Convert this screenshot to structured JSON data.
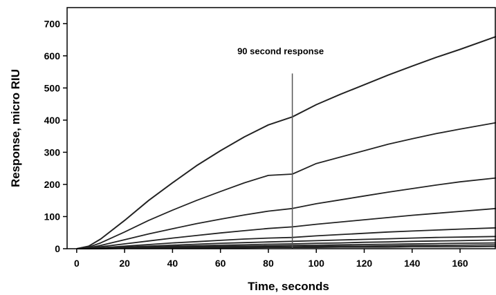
{
  "chart_data": {
    "type": "line",
    "title": "",
    "xlabel": "Time, seconds",
    "ylabel": "Response, micro RIU",
    "xlim": [
      -4,
      175
    ],
    "ylim": [
      0,
      750
    ],
    "x_ticks": [
      0,
      20,
      40,
      60,
      80,
      100,
      120,
      140,
      160
    ],
    "y_ticks": [
      0,
      100,
      200,
      300,
      400,
      500,
      600,
      700
    ],
    "grid": false,
    "legend": "none",
    "line_color": "#222222",
    "annotation": {
      "text": "90 second response",
      "x": 90,
      "line_y_range": [
        0,
        545
      ]
    },
    "x": [
      0,
      5,
      10,
      20,
      30,
      40,
      50,
      60,
      70,
      80,
      90,
      100,
      110,
      120,
      130,
      140,
      150,
      160,
      175
    ],
    "series": [
      {
        "values": [
          0,
          8,
          30,
          88,
          150,
          205,
          258,
          305,
          348,
          385,
          410,
          448,
          480,
          510,
          540,
          568,
          595,
          620,
          660
        ]
      },
      {
        "values": [
          0,
          5,
          18,
          52,
          88,
          120,
          150,
          178,
          205,
          228,
          232,
          265,
          285,
          305,
          325,
          342,
          358,
          372,
          392
        ]
      },
      {
        "values": [
          0,
          3,
          10,
          28,
          46,
          62,
          78,
          92,
          105,
          117,
          125,
          140,
          152,
          164,
          176,
          187,
          198,
          208,
          220
        ]
      },
      {
        "values": [
          0,
          2,
          6,
          15,
          24,
          33,
          41,
          49,
          56,
          63,
          68,
          76,
          83,
          90,
          97,
          104,
          110,
          116,
          125
        ]
      },
      {
        "values": [
          0,
          1,
          3,
          8,
          13,
          18,
          22,
          26,
          30,
          33,
          35,
          40,
          44,
          48,
          52,
          55,
          58,
          61,
          65
        ]
      },
      {
        "values": [
          0,
          1,
          2,
          5,
          8,
          11,
          14,
          17,
          19,
          21,
          23,
          25,
          27,
          29,
          31,
          33,
          35,
          36,
          38
        ]
      },
      {
        "values": [
          0,
          0,
          1,
          3,
          5,
          7,
          9,
          11,
          12,
          14,
          15,
          17,
          18,
          20,
          21,
          23,
          24,
          25,
          27
        ]
      },
      {
        "values": [
          0,
          0,
          1,
          2,
          3,
          4,
          6,
          7,
          8,
          9,
          10,
          11,
          12,
          13,
          14,
          15,
          16,
          17,
          18
        ]
      },
      {
        "values": [
          0,
          0,
          0,
          1,
          2,
          3,
          4,
          5,
          5,
          6,
          6,
          7,
          8,
          8,
          9,
          10,
          10,
          11,
          12
        ]
      },
      {
        "values": [
          0,
          0,
          0,
          1,
          1,
          2,
          2,
          3,
          3,
          4,
          4,
          4,
          5,
          5,
          5,
          6,
          6,
          6,
          7
        ]
      }
    ]
  }
}
